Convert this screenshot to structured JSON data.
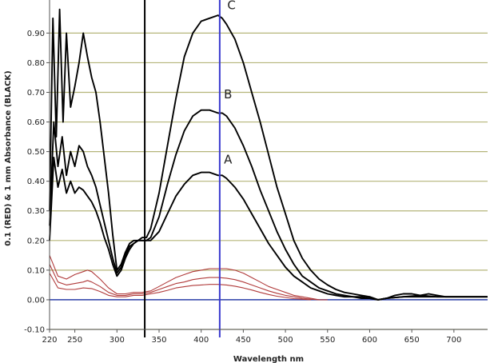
{
  "chart_data": {
    "type": "line",
    "xlabel": "Wavelength nm",
    "ylabel": "0.1 (RED) & 1 mm Absorbance (BLACK)",
    "xlim": [
      220,
      740
    ],
    "ylim": [
      -0.1,
      0.99
    ],
    "x_ticks": [
      220,
      250,
      300,
      350,
      400,
      450,
      500,
      550,
      600,
      650,
      700
    ],
    "y_ticks": [
      -0.1,
      0.0,
      0.1,
      0.2,
      0.3,
      0.4,
      0.5,
      0.6,
      0.7,
      0.8,
      0.9
    ],
    "x_tick_labels": [
      "220",
      "250",
      "300",
      "350",
      "400",
      "450",
      "500",
      "550",
      "600",
      "650",
      "700"
    ],
    "y_tick_labels": [
      "-0.10",
      "0.00",
      "0.10",
      "0.20",
      "0.30",
      "0.40",
      "0.50",
      "0.60",
      "0.70",
      "0.80",
      "0.90"
    ],
    "grid": {
      "horizontal": true,
      "vertical": false,
      "color": "#b5b57a"
    },
    "vertical_markers": [
      {
        "x": 333,
        "color": "#000000"
      },
      {
        "x": 422,
        "color": "#3b3bcf"
      }
    ],
    "baseline": {
      "y": 0,
      "color": "#2a3ea8"
    },
    "annotations": [
      {
        "text": "A",
        "x": 427,
        "y": 0.46
      },
      {
        "text": "B",
        "x": 427,
        "y": 0.68
      },
      {
        "text": "C",
        "x": 431,
        "y": 0.98
      }
    ],
    "series": [
      {
        "color": "#000000",
        "x": [
          220,
          224,
          228,
          232,
          236,
          240,
          245,
          250,
          255,
          260,
          265,
          270,
          275,
          280,
          285,
          290,
          295,
          300,
          305,
          310,
          315,
          320,
          325,
          330,
          335,
          340,
          350,
          360,
          370,
          380,
          390,
          400,
          410,
          420,
          425,
          430,
          440,
          450,
          460,
          470,
          480,
          490,
          500,
          510,
          520,
          530,
          540,
          550,
          560,
          570,
          580,
          590,
          600,
          610,
          620,
          630,
          640,
          650,
          660,
          670,
          680,
          690,
          700,
          720,
          740
        ],
        "y": [
          0.3,
          0.95,
          0.55,
          0.98,
          0.6,
          0.9,
          0.65,
          0.72,
          0.8,
          0.9,
          0.82,
          0.75,
          0.7,
          0.6,
          0.48,
          0.36,
          0.22,
          0.1,
          0.12,
          0.16,
          0.19,
          0.2,
          0.2,
          0.21,
          0.21,
          0.24,
          0.36,
          0.52,
          0.68,
          0.82,
          0.9,
          0.94,
          0.95,
          0.96,
          0.95,
          0.93,
          0.88,
          0.8,
          0.7,
          0.6,
          0.49,
          0.38,
          0.29,
          0.2,
          0.14,
          0.1,
          0.07,
          0.05,
          0.035,
          0.025,
          0.02,
          0.015,
          0.01,
          0.0,
          0.005,
          0.015,
          0.02,
          0.02,
          0.015,
          0.02,
          0.015,
          0.01,
          0.01,
          0.01,
          0.01
        ]
      },
      {
        "color": "#000000",
        "x": [
          220,
          225,
          230,
          235,
          240,
          245,
          250,
          255,
          260,
          265,
          270,
          275,
          280,
          285,
          290,
          295,
          300,
          305,
          310,
          315,
          320,
          325,
          330,
          335,
          340,
          350,
          360,
          370,
          380,
          390,
          400,
          410,
          420,
          425,
          430,
          440,
          450,
          460,
          470,
          480,
          490,
          500,
          510,
          520,
          530,
          540,
          550,
          560,
          570,
          580,
          590,
          600,
          610,
          620,
          640,
          660,
          680,
          700,
          720,
          740
        ],
        "y": [
          0.25,
          0.6,
          0.45,
          0.55,
          0.42,
          0.5,
          0.45,
          0.52,
          0.5,
          0.45,
          0.42,
          0.38,
          0.32,
          0.26,
          0.2,
          0.14,
          0.09,
          0.11,
          0.15,
          0.18,
          0.19,
          0.2,
          0.2,
          0.2,
          0.21,
          0.28,
          0.39,
          0.49,
          0.57,
          0.62,
          0.64,
          0.64,
          0.63,
          0.63,
          0.62,
          0.58,
          0.52,
          0.45,
          0.37,
          0.3,
          0.23,
          0.17,
          0.12,
          0.08,
          0.06,
          0.04,
          0.03,
          0.02,
          0.015,
          0.01,
          0.01,
          0.005,
          0.0,
          0.005,
          0.01,
          0.015,
          0.01,
          0.01,
          0.01,
          0.01
        ]
      },
      {
        "color": "#000000",
        "x": [
          220,
          225,
          230,
          235,
          240,
          245,
          250,
          255,
          260,
          265,
          270,
          275,
          280,
          285,
          290,
          295,
          300,
          305,
          310,
          315,
          320,
          325,
          330,
          335,
          340,
          350,
          360,
          370,
          380,
          390,
          400,
          410,
          420,
          425,
          430,
          440,
          450,
          460,
          470,
          480,
          490,
          500,
          510,
          520,
          530,
          540,
          550,
          560,
          570,
          580,
          590,
          600,
          610,
          620,
          640,
          660,
          680,
          700,
          720,
          740
        ],
        "y": [
          0.2,
          0.48,
          0.38,
          0.44,
          0.36,
          0.4,
          0.36,
          0.38,
          0.37,
          0.35,
          0.33,
          0.3,
          0.26,
          0.21,
          0.17,
          0.12,
          0.08,
          0.1,
          0.14,
          0.17,
          0.19,
          0.2,
          0.2,
          0.2,
          0.2,
          0.23,
          0.29,
          0.35,
          0.39,
          0.42,
          0.43,
          0.43,
          0.42,
          0.42,
          0.41,
          0.38,
          0.34,
          0.29,
          0.24,
          0.19,
          0.15,
          0.11,
          0.08,
          0.06,
          0.04,
          0.03,
          0.02,
          0.015,
          0.01,
          0.01,
          0.005,
          0.005,
          0.0,
          0.005,
          0.01,
          0.01,
          0.01,
          0.01,
          0.01,
          0.01
        ]
      },
      {
        "color": "#b03a3a",
        "x": [
          220,
          230,
          240,
          250,
          260,
          265,
          270,
          280,
          290,
          300,
          310,
          320,
          330,
          340,
          350,
          360,
          370,
          380,
          390,
          400,
          410,
          420,
          430,
          440,
          450,
          460,
          470,
          480,
          490,
          500,
          510,
          520,
          530,
          540,
          550
        ],
        "y": [
          0.15,
          0.08,
          0.07,
          0.085,
          0.095,
          0.1,
          0.095,
          0.07,
          0.04,
          0.02,
          0.02,
          0.025,
          0.025,
          0.03,
          0.045,
          0.06,
          0.075,
          0.085,
          0.095,
          0.1,
          0.105,
          0.105,
          0.105,
          0.1,
          0.09,
          0.075,
          0.06,
          0.045,
          0.035,
          0.025,
          0.015,
          0.01,
          0.005,
          0.0,
          0.0
        ]
      },
      {
        "color": "#b03a3a",
        "x": [
          220,
          230,
          240,
          250,
          260,
          265,
          270,
          280,
          290,
          300,
          310,
          320,
          330,
          340,
          350,
          360,
          370,
          380,
          390,
          400,
          410,
          420,
          430,
          440,
          450,
          460,
          470,
          480,
          490,
          500,
          510,
          520,
          530,
          540
        ],
        "y": [
          0.12,
          0.06,
          0.05,
          0.055,
          0.06,
          0.065,
          0.06,
          0.045,
          0.025,
          0.015,
          0.015,
          0.02,
          0.02,
          0.025,
          0.035,
          0.045,
          0.055,
          0.06,
          0.068,
          0.072,
          0.075,
          0.075,
          0.073,
          0.068,
          0.06,
          0.05,
          0.04,
          0.03,
          0.022,
          0.015,
          0.01,
          0.005,
          0.002,
          0.0
        ]
      },
      {
        "color": "#b03a3a",
        "x": [
          220,
          230,
          240,
          250,
          260,
          270,
          280,
          290,
          300,
          310,
          320,
          330,
          340,
          350,
          360,
          370,
          380,
          390,
          400,
          410,
          420,
          430,
          440,
          450,
          460,
          470,
          480,
          490,
          500,
          510,
          520,
          530
        ],
        "y": [
          0.09,
          0.04,
          0.035,
          0.035,
          0.04,
          0.038,
          0.028,
          0.015,
          0.01,
          0.01,
          0.015,
          0.015,
          0.02,
          0.025,
          0.032,
          0.04,
          0.044,
          0.048,
          0.05,
          0.052,
          0.052,
          0.05,
          0.046,
          0.04,
          0.033,
          0.025,
          0.018,
          0.012,
          0.008,
          0.004,
          0.002,
          0.0
        ]
      }
    ]
  }
}
